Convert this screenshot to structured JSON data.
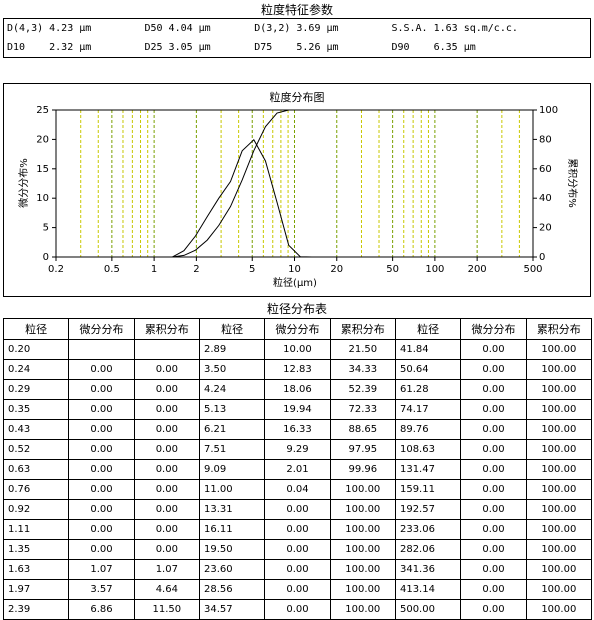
{
  "params": {
    "title": "粒度特征参数",
    "rows": [
      [
        "D(4,3) 4.23 μm",
        "D50 4.04 μm",
        "D(3,2) 3.69 μm",
        "S.S.A. 1.63 sq.m/c.c."
      ],
      [
        "D10    2.32 μm",
        "D25 3.05 μm",
        "D75    5.26 μm",
        "D90    6.35 μm"
      ]
    ]
  },
  "chart_data": {
    "type": "line",
    "title": "粒度分布图",
    "xlabel": "粒径(μm)",
    "ylabel": "微分分布%",
    "y2label": "累积分布%",
    "log_x": true,
    "grid": true,
    "x": [
      1.11,
      1.35,
      1.63,
      1.97,
      2.39,
      2.89,
      3.5,
      4.24,
      5.13,
      6.21,
      7.51,
      9.09,
      11.0,
      13.31
    ],
    "series": [
      {
        "name": "微分分布",
        "color": "#000000",
        "values": [
          0,
          0,
          1.07,
          3.57,
          6.86,
          10.0,
          12.83,
          18.06,
          19.94,
          16.33,
          9.29,
          2.01,
          0.04,
          0
        ]
      },
      {
        "name": "累积分布",
        "color": "#000000",
        "axis": "y2",
        "values": [
          0,
          0,
          1.07,
          4.64,
          11.5,
          21.5,
          34.33,
          52.39,
          72.33,
          88.65,
          97.95,
          99.96,
          100,
          100
        ]
      }
    ],
    "xlim": [
      0.2,
      500
    ],
    "xticks": [
      0.2,
      0.5,
      1,
      2,
      5,
      10,
      20,
      50,
      100,
      200,
      500
    ],
    "xminorticks": [
      0.3,
      0.4,
      0.6,
      0.7,
      0.8,
      0.9,
      3,
      4,
      6,
      7,
      8,
      9,
      30,
      40,
      60,
      70,
      80,
      90,
      300,
      400
    ],
    "ylim": [
      0,
      25
    ],
    "yticks": [
      0,
      5,
      10,
      15,
      20,
      25
    ],
    "y2lim": [
      0,
      100
    ],
    "y2ticks": [
      0,
      20,
      40,
      60,
      80,
      100
    ]
  },
  "table": {
    "title": "粒径分布表",
    "header": [
      "粒径",
      "微分分布",
      "累积分布",
      "粒径",
      "微分分布",
      "累积分布",
      "粒径",
      "微分分布",
      "累积分布"
    ],
    "rows": [
      [
        "0.20",
        null,
        null,
        "2.89",
        "10.00",
        "21.50",
        "41.84",
        "0.00",
        "100.00"
      ],
      [
        "0.24",
        "0.00",
        "0.00",
        "3.50",
        "12.83",
        "34.33",
        "50.64",
        "0.00",
        "100.00"
      ],
      [
        "0.29",
        "0.00",
        "0.00",
        "4.24",
        "18.06",
        "52.39",
        "61.28",
        "0.00",
        "100.00"
      ],
      [
        "0.35",
        "0.00",
        "0.00",
        "5.13",
        "19.94",
        "72.33",
        "74.17",
        "0.00",
        "100.00"
      ],
      [
        "0.43",
        "0.00",
        "0.00",
        "6.21",
        "16.33",
        "88.65",
        "89.76",
        "0.00",
        "100.00"
      ],
      [
        "0.52",
        "0.00",
        "0.00",
        "7.51",
        "9.29",
        "97.95",
        "108.63",
        "0.00",
        "100.00"
      ],
      [
        "0.63",
        "0.00",
        "0.00",
        "9.09",
        "2.01",
        "99.96",
        "131.47",
        "0.00",
        "100.00"
      ],
      [
        "0.76",
        "0.00",
        "0.00",
        "11.00",
        "0.04",
        "100.00",
        "159.11",
        "0.00",
        "100.00"
      ],
      [
        "0.92",
        "0.00",
        "0.00",
        "13.31",
        "0.00",
        "100.00",
        "192.57",
        "0.00",
        "100.00"
      ],
      [
        "1.11",
        "0.00",
        "0.00",
        "16.11",
        "0.00",
        "100.00",
        "233.06",
        "0.00",
        "100.00"
      ],
      [
        "1.35",
        "0.00",
        "0.00",
        "19.50",
        "0.00",
        "100.00",
        "282.06",
        "0.00",
        "100.00"
      ],
      [
        "1.63",
        "1.07",
        "1.07",
        "23.60",
        "0.00",
        "100.00",
        "341.36",
        "0.00",
        "100.00"
      ],
      [
        "1.97",
        "3.57",
        "4.64",
        "28.56",
        "0.00",
        "100.00",
        "413.14",
        "0.00",
        "100.00"
      ],
      [
        "2.39",
        "6.86",
        "11.50",
        "34.57",
        "0.00",
        "100.00",
        "500.00",
        "0.00",
        "100.00"
      ]
    ]
  }
}
